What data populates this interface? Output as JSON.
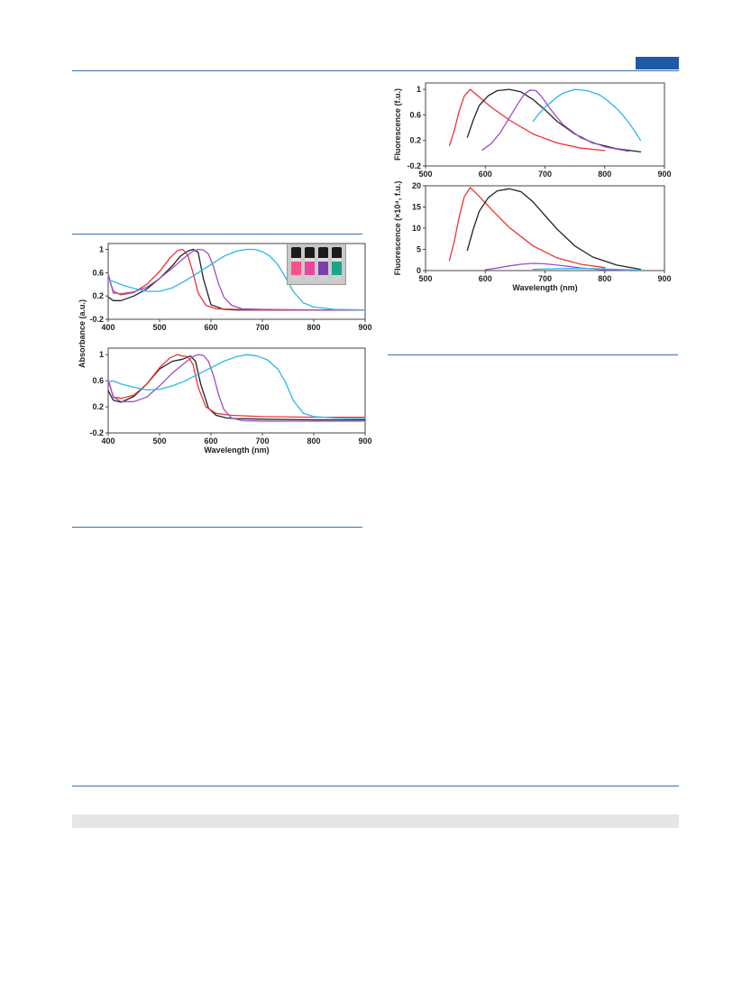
{
  "page": {
    "header_rule_color": "#3b6fb0",
    "tab_color": "#1f5aa6",
    "band_color": "#e6e6e6"
  },
  "inset_vials": {
    "colors": [
      "#ff4f8a",
      "#e8489a",
      "#7b3fa8",
      "#1aa58a"
    ]
  },
  "chart_data": [
    {
      "id": "absorbance-top",
      "type": "line",
      "xlabel": "",
      "ylabel": "",
      "xlim": [
        400,
        900
      ],
      "ylim": [
        -0.2,
        1.1
      ],
      "xticks": [
        "400",
        "500",
        "600",
        "700",
        "800",
        "900"
      ],
      "yticks": [
        "1",
        "0.6",
        "0.2",
        "-0.2"
      ],
      "grid": false,
      "series": [
        {
          "color": "#222222",
          "x": [
            400,
            410,
            425,
            450,
            475,
            500,
            525,
            540,
            555,
            565,
            575,
            585,
            600,
            625,
            650,
            700,
            800,
            900
          ],
          "y": [
            0.18,
            0.12,
            0.12,
            0.2,
            0.32,
            0.5,
            0.72,
            0.88,
            0.97,
            1.0,
            0.95,
            0.5,
            0.05,
            -0.03,
            -0.04,
            -0.04,
            -0.04,
            -0.04
          ]
        },
        {
          "color": "#ee3333",
          "x": [
            400,
            410,
            425,
            450,
            475,
            500,
            520,
            535,
            545,
            555,
            565,
            575,
            590,
            610,
            650,
            700,
            800,
            900
          ],
          "y": [
            0.55,
            0.28,
            0.22,
            0.26,
            0.4,
            0.62,
            0.85,
            0.98,
            1.0,
            0.9,
            0.6,
            0.25,
            0.04,
            -0.02,
            -0.03,
            -0.04,
            -0.04,
            -0.04
          ]
        },
        {
          "color": "#9b4fc3",
          "x": [
            400,
            410,
            425,
            450,
            475,
            500,
            525,
            550,
            565,
            575,
            585,
            595,
            605,
            615,
            625,
            640,
            660,
            700,
            800,
            900
          ],
          "y": [
            0.58,
            0.25,
            0.24,
            0.27,
            0.35,
            0.5,
            0.68,
            0.87,
            0.97,
            1.0,
            0.99,
            0.92,
            0.7,
            0.4,
            0.18,
            0.04,
            -0.02,
            -0.03,
            -0.04,
            -0.04
          ]
        },
        {
          "color": "#2bb7e8",
          "x": [
            400,
            410,
            430,
            450,
            475,
            500,
            525,
            550,
            575,
            600,
            625,
            650,
            670,
            685,
            700,
            715,
            730,
            745,
            760,
            780,
            800,
            840,
            900
          ],
          "y": [
            0.48,
            0.45,
            0.38,
            0.33,
            0.28,
            0.28,
            0.34,
            0.46,
            0.6,
            0.74,
            0.88,
            0.97,
            1.0,
            1.0,
            0.96,
            0.88,
            0.74,
            0.52,
            0.28,
            0.08,
            0.01,
            -0.03,
            -0.04
          ]
        }
      ]
    },
    {
      "id": "absorbance-bottom",
      "type": "line",
      "xlabel": "Wavelength (nm)",
      "ylabel": "",
      "xlim": [
        400,
        900
      ],
      "ylim": [
        -0.2,
        1.1
      ],
      "xticks": [
        "400",
        "500",
        "600",
        "700",
        "800",
        "900"
      ],
      "yticks": [
        "1",
        "0.6",
        "0.2",
        "-0.2"
      ],
      "grid": false,
      "series": [
        {
          "color": "#222222",
          "x": [
            400,
            410,
            425,
            450,
            475,
            500,
            525,
            545,
            560,
            570,
            580,
            595,
            610,
            630,
            650,
            700,
            800,
            900
          ],
          "y": [
            0.45,
            0.3,
            0.27,
            0.36,
            0.55,
            0.78,
            0.9,
            0.93,
            0.98,
            0.9,
            0.55,
            0.18,
            0.07,
            0.03,
            0.02,
            0.01,
            0.0,
            0.0
          ]
        },
        {
          "color": "#ee3333",
          "x": [
            400,
            410,
            425,
            450,
            475,
            500,
            520,
            535,
            545,
            555,
            565,
            575,
            590,
            610,
            640,
            700,
            800,
            900
          ],
          "y": [
            0.62,
            0.35,
            0.33,
            0.38,
            0.55,
            0.8,
            0.95,
            1.0,
            0.98,
            0.97,
            0.85,
            0.5,
            0.2,
            0.1,
            0.07,
            0.05,
            0.04,
            0.04
          ]
        },
        {
          "color": "#9b4fc3",
          "x": [
            400,
            410,
            425,
            450,
            475,
            500,
            525,
            550,
            565,
            575,
            585,
            595,
            605,
            615,
            625,
            640,
            660,
            700,
            800,
            900
          ],
          "y": [
            0.6,
            0.35,
            0.28,
            0.28,
            0.35,
            0.52,
            0.72,
            0.88,
            0.97,
            1.0,
            0.99,
            0.9,
            0.68,
            0.38,
            0.16,
            0.03,
            -0.01,
            -0.02,
            -0.02,
            -0.02
          ]
        },
        {
          "color": "#2bb7e8",
          "x": [
            400,
            410,
            425,
            450,
            475,
            500,
            525,
            550,
            575,
            600,
            625,
            650,
            670,
            690,
            710,
            730,
            745,
            760,
            780,
            800,
            840,
            900
          ],
          "y": [
            0.58,
            0.6,
            0.55,
            0.5,
            0.46,
            0.47,
            0.52,
            0.6,
            0.7,
            0.8,
            0.9,
            0.97,
            1.0,
            0.98,
            0.92,
            0.78,
            0.58,
            0.3,
            0.1,
            0.05,
            0.03,
            0.02
          ]
        }
      ]
    },
    {
      "id": "fluorescence-top",
      "type": "line",
      "xlabel": "",
      "ylabel": "Fluorescence (f.u.)",
      "xlim": [
        500,
        900
      ],
      "ylim": [
        -0.2,
        1.1
      ],
      "xticks": [
        "500",
        "600",
        "700",
        "800",
        "900"
      ],
      "yticks": [
        "1",
        "0.6",
        "0.2",
        "-0.2"
      ],
      "grid": false,
      "series": [
        {
          "color": "#ee3333",
          "x": [
            540,
            548,
            556,
            565,
            575,
            590,
            610,
            640,
            680,
            720,
            760,
            800
          ],
          "y": [
            0.12,
            0.35,
            0.65,
            0.9,
            1.0,
            0.88,
            0.72,
            0.52,
            0.3,
            0.16,
            0.08,
            0.04
          ]
        },
        {
          "color": "#222222",
          "x": [
            570,
            580,
            590,
            605,
            620,
            640,
            660,
            680,
            700,
            720,
            750,
            780,
            820,
            860
          ],
          "y": [
            0.25,
            0.52,
            0.75,
            0.9,
            0.98,
            1.0,
            0.96,
            0.84,
            0.68,
            0.5,
            0.3,
            0.16,
            0.07,
            0.02
          ]
        },
        {
          "color": "#9b4fc3",
          "x": [
            595,
            610,
            625,
            640,
            655,
            665,
            675,
            685,
            695,
            710,
            730,
            760,
            800,
            840
          ],
          "y": [
            0.05,
            0.15,
            0.32,
            0.55,
            0.78,
            0.92,
            0.99,
            0.98,
            0.88,
            0.68,
            0.45,
            0.24,
            0.1,
            0.03
          ]
        },
        {
          "color": "#2bb7e8",
          "x": [
            680,
            690,
            700,
            710,
            720,
            730,
            740,
            750,
            760,
            770,
            780,
            790,
            800,
            810,
            820,
            830,
            840,
            850,
            860
          ],
          "y": [
            0.5,
            0.62,
            0.72,
            0.8,
            0.88,
            0.94,
            0.97,
            1.0,
            0.99,
            0.98,
            0.95,
            0.92,
            0.86,
            0.78,
            0.7,
            0.6,
            0.48,
            0.35,
            0.2
          ]
        }
      ]
    },
    {
      "id": "fluorescence-bottom",
      "type": "line",
      "xlabel": "Wavelength (nm)",
      "ylabel": "Fluorescence (×10⁴, f.u.)",
      "xlim": [
        500,
        900
      ],
      "ylim": [
        0,
        20
      ],
      "xticks": [
        "500",
        "600",
        "700",
        "800",
        "900"
      ],
      "yticks": [
        "20",
        "15",
        "10",
        "5",
        "0"
      ],
      "grid": false,
      "series": [
        {
          "color": "#ee3333",
          "x": [
            540,
            548,
            556,
            565,
            575,
            590,
            610,
            640,
            680,
            720,
            760,
            800
          ],
          "y": [
            2.4,
            6.8,
            12.5,
            17.5,
            19.6,
            17.5,
            14.5,
            10.2,
            5.8,
            3.0,
            1.5,
            0.7
          ]
        },
        {
          "color": "#222222",
          "x": [
            570,
            580,
            590,
            605,
            620,
            640,
            660,
            680,
            700,
            720,
            750,
            780,
            820,
            860
          ],
          "y": [
            4.8,
            9.8,
            14.0,
            17.2,
            18.8,
            19.3,
            18.6,
            16.2,
            13.0,
            9.8,
            5.8,
            3.2,
            1.3,
            0.3
          ]
        },
        {
          "color": "#9b4fc3",
          "x": [
            600,
            620,
            640,
            660,
            680,
            700,
            720,
            740,
            760,
            800,
            840
          ],
          "y": [
            0.2,
            0.6,
            1.1,
            1.5,
            1.7,
            1.6,
            1.3,
            1.0,
            0.6,
            0.2,
            0.05
          ]
        },
        {
          "color": "#2bb7e8",
          "x": [
            680,
            700,
            720,
            740,
            760,
            780,
            800,
            820,
            840,
            860
          ],
          "y": [
            0.3,
            0.4,
            0.45,
            0.5,
            0.5,
            0.45,
            0.4,
            0.3,
            0.2,
            0.1
          ]
        }
      ]
    }
  ],
  "shared_labels": {
    "absorbance_ylabel": "Absorbance (a.u.)"
  }
}
